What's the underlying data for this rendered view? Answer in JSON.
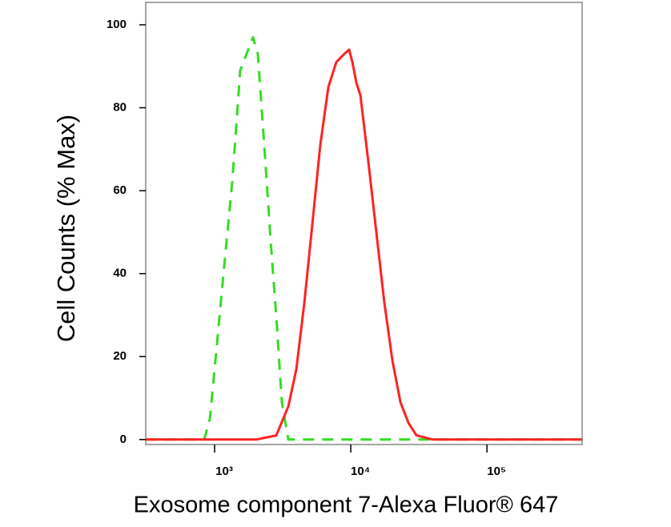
{
  "chart_data": {
    "type": "line",
    "x_label": "Exosome component 7-Alexa Fluor® 647",
    "y_label": "Cell Counts (% Max)",
    "log_x": true,
    "xlim": [
      312,
      500000
    ],
    "ylim": [
      -1.2,
      105.4
    ],
    "xticks": [
      {
        "value": 1000,
        "label": "10³"
      },
      {
        "value": 10000,
        "label": "10⁴"
      },
      {
        "value": 100000,
        "label": "10⁵"
      }
    ],
    "yticks": [
      0,
      20,
      40,
      60,
      80,
      100
    ],
    "series": [
      {
        "color": "#33dd22",
        "dashed": true,
        "x": [
          312,
          597,
          838,
          923,
          1027,
          1177,
          1346,
          1542,
          1766,
          1915,
          2078,
          2316,
          2580,
          2876,
          3119,
          3477,
          500000
        ],
        "values": [
          0,
          0,
          0,
          5,
          21,
          42,
          62,
          89,
          94,
          97,
          93,
          71,
          48,
          27,
          9,
          0,
          0
        ]
      },
      {
        "color": "#ff2222",
        "dashed": false,
        "x": [
          312,
          2022,
          2838,
          3477,
          3981,
          4560,
          5222,
          5975,
          6842,
          7832,
          8970,
          9727,
          10274,
          10990,
          11770,
          13460,
          15410,
          17650,
          20220,
          23160,
          26530,
          30350,
          39810,
          500000
        ],
        "values": [
          0,
          0,
          1,
          8,
          17,
          33,
          52,
          71,
          85,
          91,
          93,
          94,
          91,
          86,
          83,
          67,
          50,
          33,
          19,
          9,
          4,
          1,
          0,
          0
        ]
      }
    ]
  }
}
